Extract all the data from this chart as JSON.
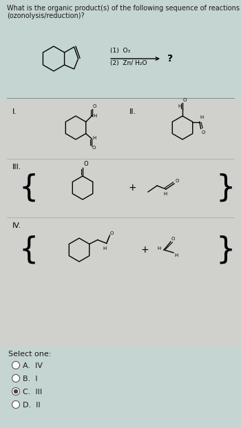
{
  "title_line1": "What is the organic product(s) of the following sequence of reactions",
  "title_line2": "(ozonolysis/reduction)?",
  "reagent_line1": "(1)  O₃",
  "reagent_line2": "(2)  Zn/ H₂O",
  "question_mark": "?",
  "options": [
    "A.  IV",
    "B.  I",
    "C.  III",
    "D.  II"
  ],
  "select_one": "Select one:",
  "bg_color": "#ccd8d6",
  "panel_color": "#d4d4d0",
  "label_I": "I.",
  "label_II": "II.",
  "label_III": "III.",
  "label_IV": "IV.",
  "plus_sign": "+",
  "title_fontsize": 7.0,
  "label_fontsize": 8,
  "option_fontsize": 8,
  "chem_lw": 1.0
}
